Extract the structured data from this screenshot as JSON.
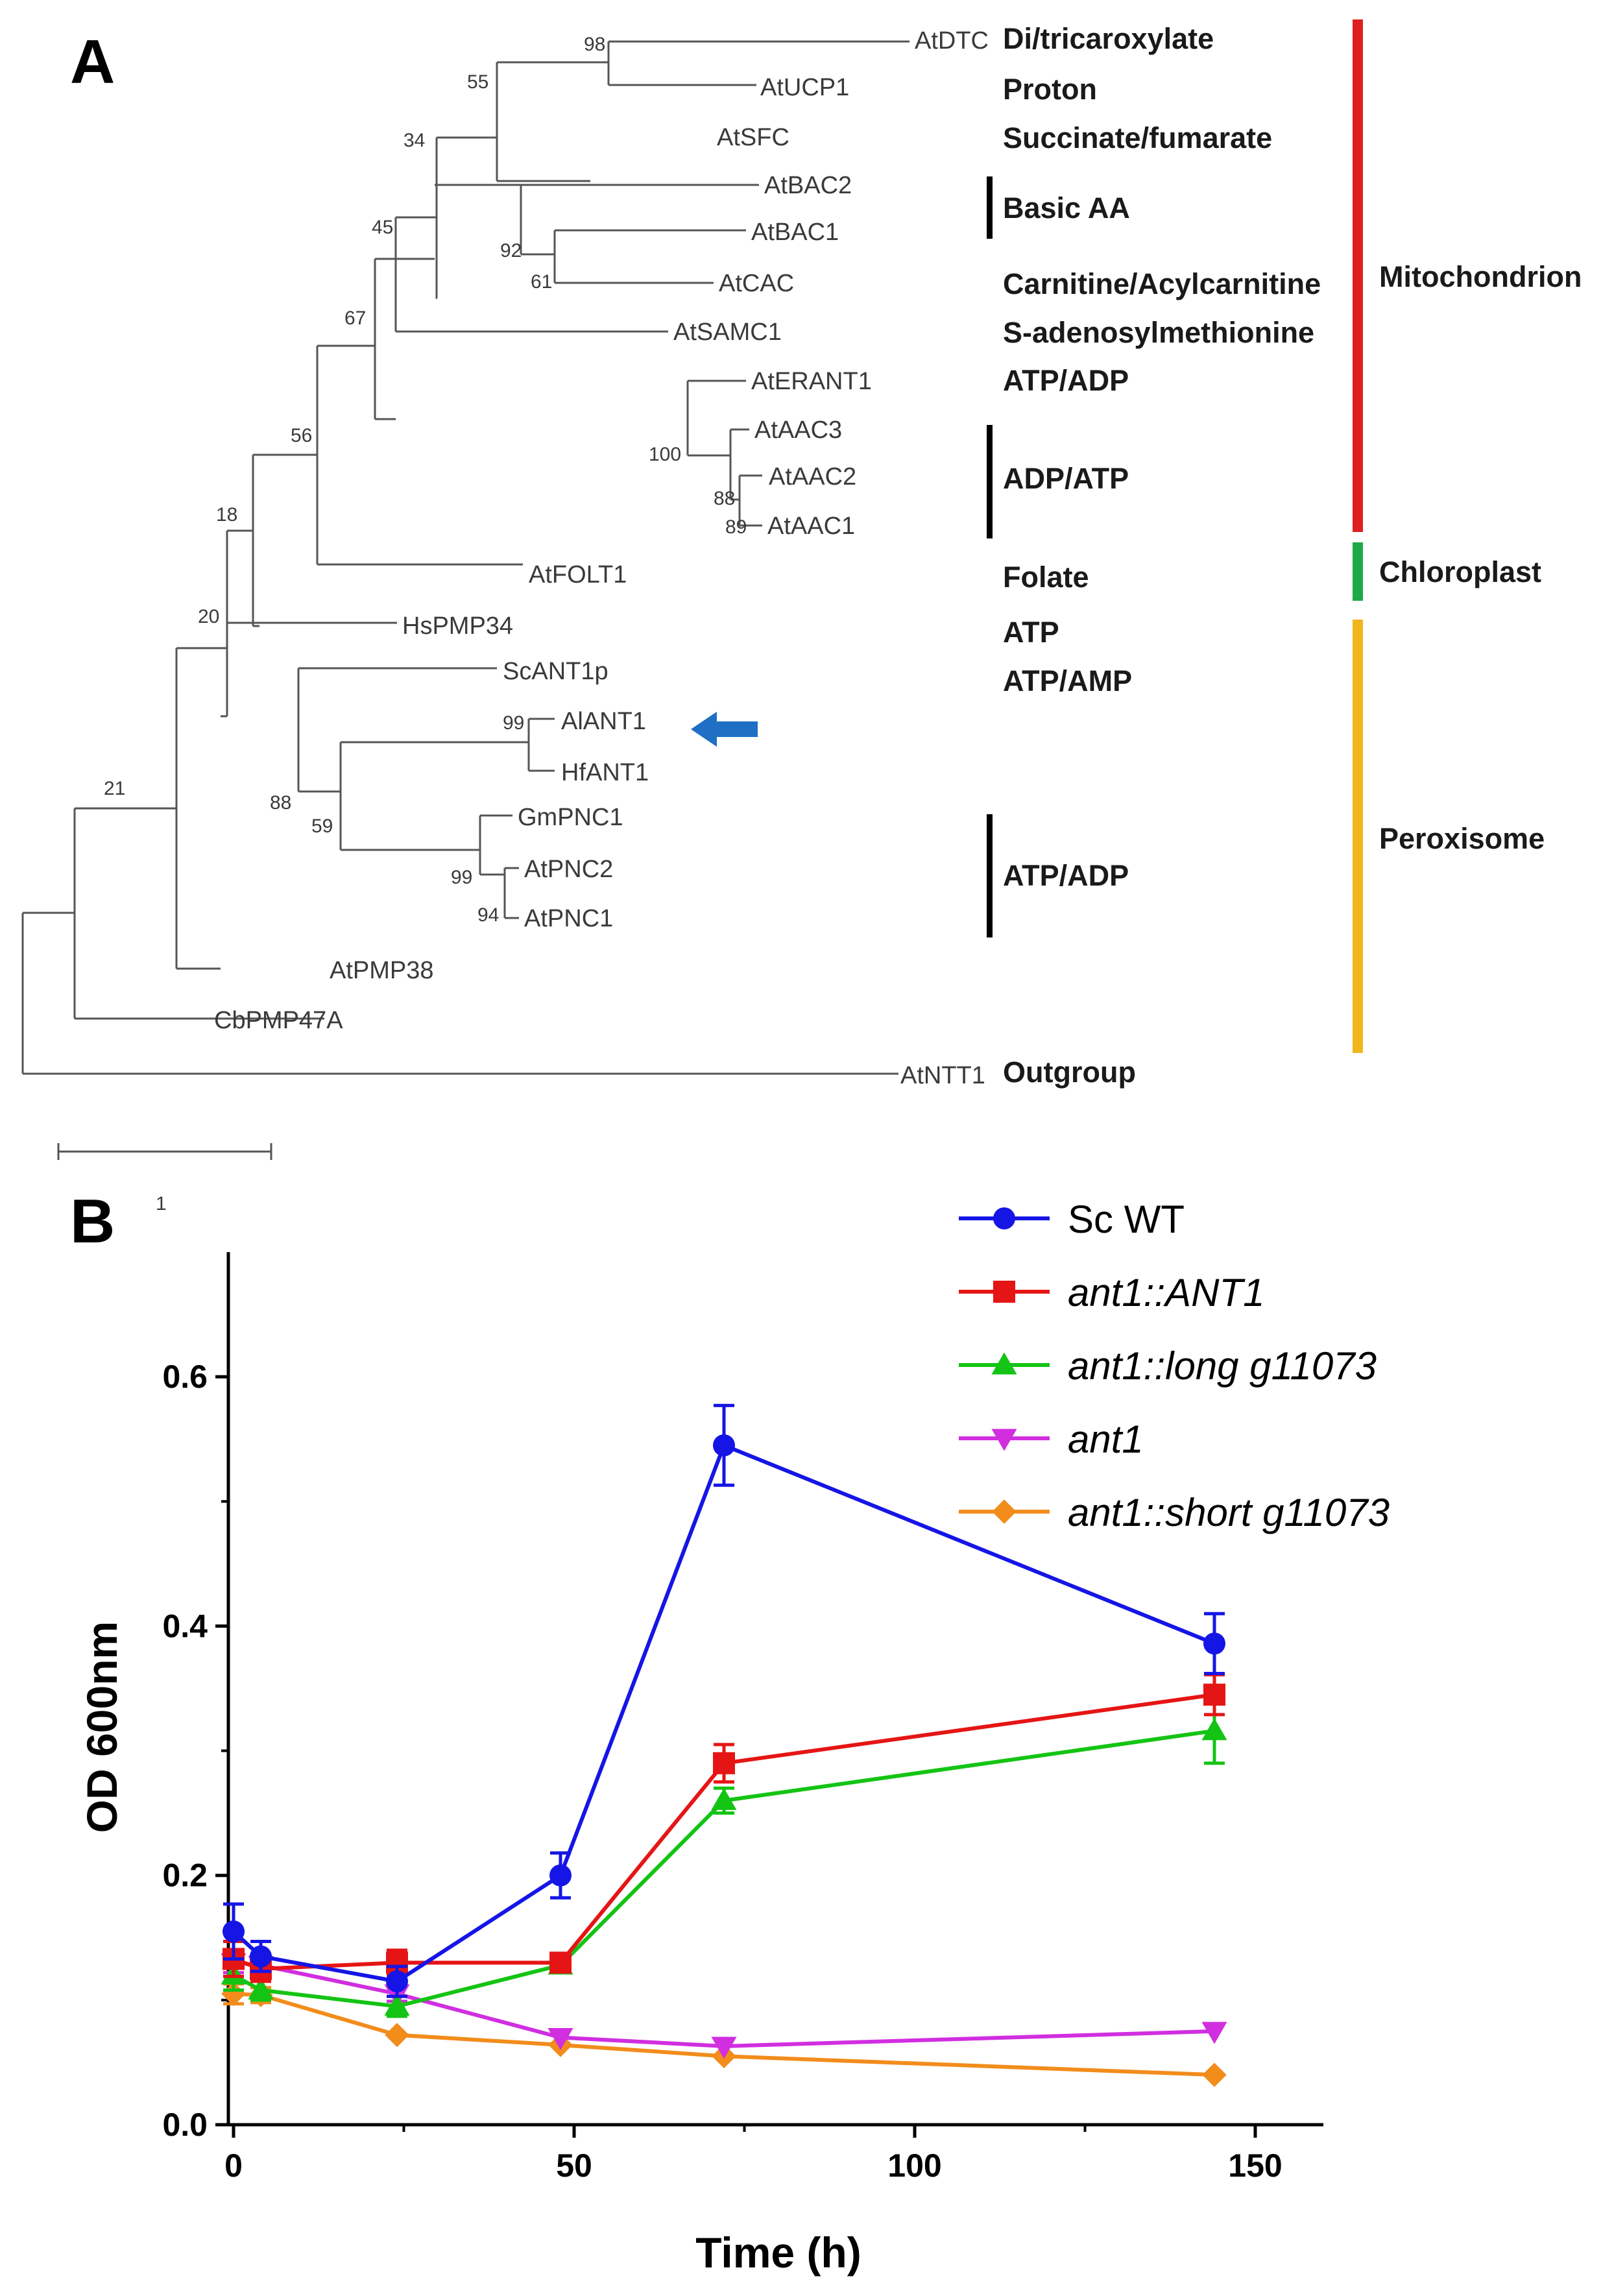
{
  "panel_a": {
    "label": "A",
    "scale_bar_label": "1",
    "tips": [
      {
        "name": "AtDTC",
        "function": "Di/tricaroxylate"
      },
      {
        "name": "AtUCP1",
        "function": "Proton"
      },
      {
        "name": "AtSFC",
        "function": "Succinate/fumarate"
      },
      {
        "name": "AtBAC2",
        "function": ""
      },
      {
        "name": "AtBAC1",
        "function": ""
      },
      {
        "name": "AtCAC",
        "function": "Carnitine/Acylcarnitine"
      },
      {
        "name": "AtSAMC1",
        "function": "S-adenosylmethionine"
      },
      {
        "name": "AtERANT1",
        "function": "ATP/ADP"
      },
      {
        "name": "AtAAC3",
        "function": ""
      },
      {
        "name": "AtAAC2",
        "function": ""
      },
      {
        "name": "AtAAC1",
        "function": ""
      },
      {
        "name": "AtFOLT1",
        "function": "Folate"
      },
      {
        "name": "HsPMP34",
        "function": "ATP"
      },
      {
        "name": "ScANT1p",
        "function": "ATP/AMP"
      },
      {
        "name": "AlANT1",
        "function": ""
      },
      {
        "name": "HfANT1",
        "function": ""
      },
      {
        "name": "GmPNC1",
        "function": ""
      },
      {
        "name": "AtPNC2",
        "function": ""
      },
      {
        "name": "AtPNC1",
        "function": ""
      },
      {
        "name": "AtPMP38",
        "function": ""
      },
      {
        "name": "CbPMP47A",
        "function": ""
      },
      {
        "name": "AtNTT1",
        "function": "Outgroup"
      }
    ],
    "group_labels": {
      "basic_aa": "Basic AA",
      "adp_atp": "ADP/ATP",
      "atp_adp": "ATP/ADP"
    },
    "bootstraps": [
      "98",
      "55",
      "34",
      "92",
      "61",
      "45",
      "67",
      "100",
      "88",
      "89",
      "56",
      "18",
      "20",
      "99",
      "88",
      "59",
      "99",
      "94",
      "21"
    ],
    "compartments": [
      {
        "name": "Mitochondrion",
        "color": "#e02020"
      },
      {
        "name": "Chloroplast",
        "color": "#1fa84a"
      },
      {
        "name": "Peroxisome",
        "color": "#f2b51d"
      }
    ],
    "arrow_color": "#1f6fc5"
  },
  "panel_b": {
    "label": "B",
    "chart_data": {
      "type": "line",
      "xlabel": "Time (h)",
      "ylabel": "OD 600nm",
      "xlim": [
        0,
        160
      ],
      "ylim": [
        0,
        0.7
      ],
      "xticks": [
        "0",
        "50",
        "100",
        "150"
      ],
      "yticks": [
        "0.0",
        "0.2",
        "0.4",
        "0.6"
      ],
      "grid": false,
      "legend_position": "top-right",
      "x": [
        0,
        4,
        24,
        48,
        72,
        144
      ],
      "series": [
        {
          "name": "Sc WT",
          "color": "#1515e6",
          "marker": "circle",
          "italic": false,
          "values": [
            0.155,
            0.135,
            0.115,
            0.2,
            0.545,
            0.386
          ],
          "errors": [
            0.022,
            0.012,
            0.012,
            0.018,
            0.032,
            0.024
          ]
        },
        {
          "name": "ant1::ANT1",
          "color": "#e61515",
          "marker": "square",
          "italic": true,
          "values": [
            0.133,
            0.125,
            0.13,
            0.13,
            0.29,
            0.345
          ],
          "errors": [
            0.014,
            0.01,
            0.01,
            0.006,
            0.015,
            0.016
          ]
        },
        {
          "name": "ant1::long g11073",
          "color": "#14c414",
          "marker": "triangle-up",
          "italic": true,
          "values": [
            0.12,
            0.108,
            0.095,
            0.128,
            0.26,
            0.316
          ],
          "errors": [
            0.012,
            0.008,
            0.008,
            0.006,
            0.01,
            0.026
          ]
        },
        {
          "name": "ant1",
          "color": "#d12ee0",
          "marker": "triangle-down",
          "italic": true,
          "values": [
            0.13,
            0.128,
            0.105,
            0.07,
            0.063,
            0.075
          ],
          "errors": [
            0.008,
            0.006,
            0.006,
            0.004,
            0.003,
            0.004
          ]
        },
        {
          "name": "ant1::short g11073",
          "color": "#f28c1b",
          "marker": "diamond",
          "italic": true,
          "values": [
            0.105,
            0.104,
            0.072,
            0.064,
            0.055,
            0.04
          ],
          "errors": [
            0.008,
            0.006,
            0.004,
            0.003,
            0.003,
            0.003
          ]
        }
      ]
    }
  }
}
